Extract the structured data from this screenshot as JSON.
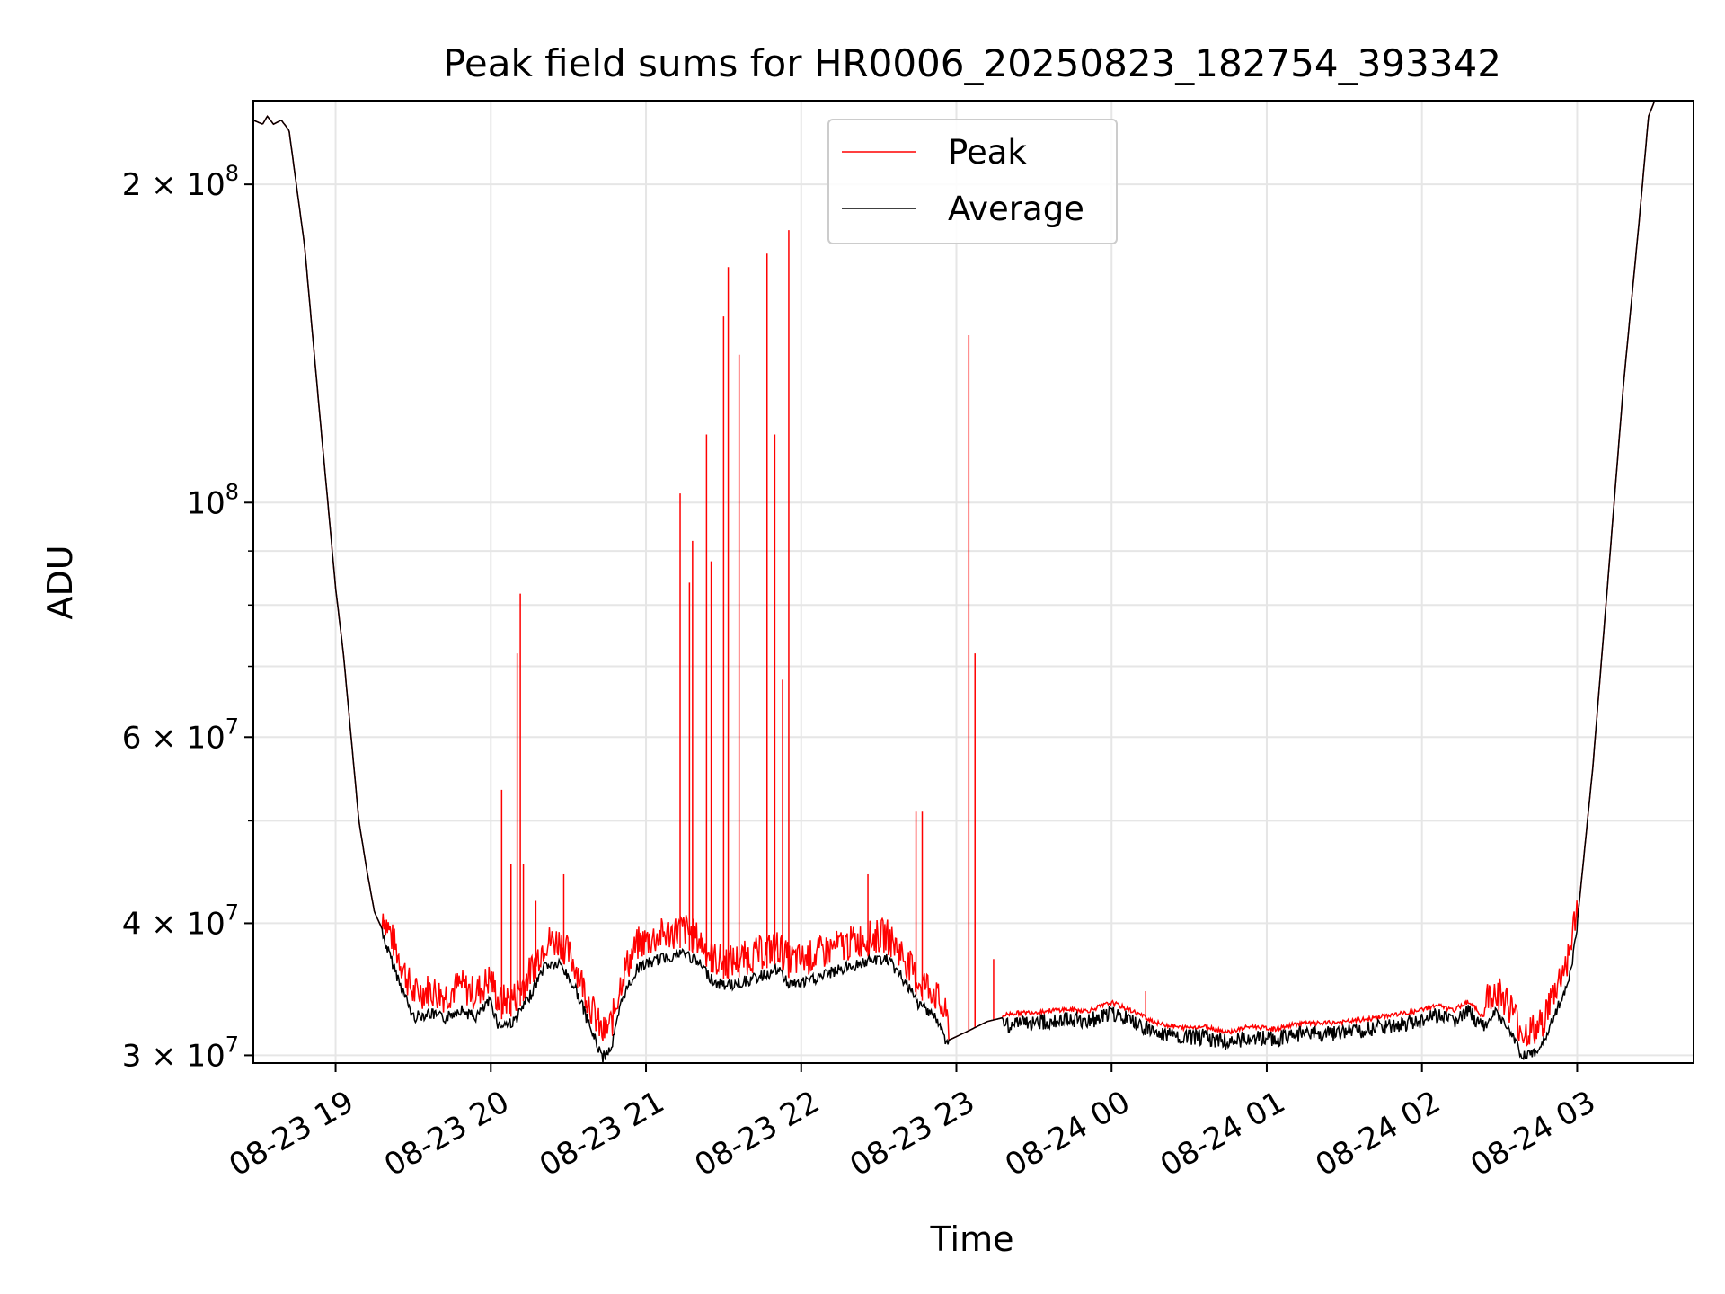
{
  "chart_data": {
    "type": "line",
    "title": "Peak field sums for HR0006_20250823_182754_393342",
    "xlabel": "Time",
    "ylabel": "ADU",
    "yscale": "log",
    "ylim": [
      29500000,
      240000000
    ],
    "xlim_hours": [
      18.47,
      27.75
    ],
    "grid": true,
    "legend_position": "upper center",
    "x_tick_labels": [
      "08-23 19",
      "08-23 20",
      "08-23 21",
      "08-23 22",
      "08-23 23",
      "08-24 00",
      "08-24 01",
      "08-24 02",
      "08-24 03"
    ],
    "x_tick_hours": [
      19,
      20,
      21,
      22,
      23,
      24,
      25,
      26,
      27
    ],
    "y_major_ticks": [
      {
        "value": 30000000,
        "mantissa": "3",
        "exp": "7"
      },
      {
        "value": 40000000,
        "mantissa": "4",
        "exp": "7"
      },
      {
        "value": 60000000,
        "mantissa": "6",
        "exp": "7"
      },
      {
        "value": 100000000,
        "mantissa": "",
        "exp": "8"
      },
      {
        "value": 200000000,
        "mantissa": "2",
        "exp": "8"
      }
    ],
    "y_minor_ticks": [
      50000000,
      70000000,
      80000000,
      90000000
    ],
    "colors": {
      "peak": "#ff0000",
      "average": "#000000"
    },
    "series": [
      {
        "name": "Average",
        "color": "#000000",
        "points": [
          [
            18.47,
            230000000
          ],
          [
            18.53,
            228000000
          ],
          [
            18.56,
            232000000
          ],
          [
            18.6,
            228000000
          ],
          [
            18.65,
            230000000
          ],
          [
            18.7,
            225000000
          ],
          [
            18.8,
            175000000
          ],
          [
            18.9,
            120000000
          ],
          [
            18.95,
            100000000
          ],
          [
            19.0,
            83000000
          ],
          [
            19.05,
            72000000
          ],
          [
            19.1,
            60000000
          ],
          [
            19.15,
            50000000
          ],
          [
            19.2,
            45000000
          ],
          [
            19.25,
            41000000
          ],
          [
            19.3,
            39500000
          ],
          [
            19.4,
            36000000
          ],
          [
            19.5,
            33000000
          ],
          [
            19.6,
            33300000
          ],
          [
            19.7,
            32900000
          ],
          [
            19.8,
            33600000
          ],
          [
            19.9,
            33000000
          ],
          [
            20.0,
            34200000
          ],
          [
            20.05,
            32400000
          ],
          [
            20.15,
            32700000
          ],
          [
            20.25,
            34500000
          ],
          [
            20.35,
            37000000
          ],
          [
            20.45,
            37000000
          ],
          [
            20.55,
            35000000
          ],
          [
            20.65,
            32000000
          ],
          [
            20.72,
            30200000
          ],
          [
            20.78,
            31000000
          ],
          [
            20.85,
            34500000
          ],
          [
            20.95,
            36800000
          ],
          [
            21.1,
            37500000
          ],
          [
            21.25,
            38000000
          ],
          [
            21.35,
            37000000
          ],
          [
            21.45,
            35500000
          ],
          [
            21.55,
            35400000
          ],
          [
            21.7,
            35900000
          ],
          [
            21.85,
            36600000
          ],
          [
            21.92,
            35500000
          ],
          [
            22.0,
            35500000
          ],
          [
            22.2,
            36400000
          ],
          [
            22.4,
            37200000
          ],
          [
            22.55,
            37500000
          ],
          [
            22.65,
            36000000
          ],
          [
            22.75,
            34000000
          ],
          [
            22.85,
            33300000
          ],
          [
            22.95,
            31000000
          ],
          [
            23.05,
            31500000
          ],
          [
            23.2,
            32300000
          ],
          [
            23.35,
            32700000
          ],
          [
            23.5,
            32800000
          ],
          [
            23.7,
            33000000
          ],
          [
            23.85,
            32900000
          ],
          [
            24.0,
            33500000
          ],
          [
            24.15,
            32800000
          ],
          [
            24.3,
            32000000
          ],
          [
            24.45,
            31700000
          ],
          [
            24.6,
            31800000
          ],
          [
            24.75,
            31400000
          ],
          [
            24.9,
            31800000
          ],
          [
            25.05,
            31600000
          ],
          [
            25.2,
            32000000
          ],
          [
            25.35,
            32000000
          ],
          [
            25.5,
            32100000
          ],
          [
            25.65,
            32300000
          ],
          [
            25.8,
            32600000
          ],
          [
            25.95,
            32800000
          ],
          [
            26.1,
            33300000
          ],
          [
            26.2,
            32900000
          ],
          [
            26.3,
            33600000
          ],
          [
            26.4,
            32400000
          ],
          [
            26.47,
            33300000
          ],
          [
            26.55,
            32500000
          ],
          [
            26.65,
            30300000
          ],
          [
            26.75,
            30500000
          ],
          [
            26.85,
            33000000
          ],
          [
            26.95,
            36000000
          ],
          [
            27.0,
            40000000
          ],
          [
            27.1,
            56000000
          ],
          [
            27.2,
            85000000
          ],
          [
            27.3,
            130000000
          ],
          [
            27.4,
            185000000
          ],
          [
            27.46,
            232000000
          ],
          [
            27.5,
            240000000
          ]
        ]
      },
      {
        "name": "Peak",
        "color": "#ff0000",
        "spikes": [
          [
            20.07,
            53500000
          ],
          [
            20.13,
            45500000
          ],
          [
            20.17,
            72000000
          ],
          [
            20.19,
            82000000
          ],
          [
            20.21,
            45500000
          ],
          [
            20.29,
            42000000
          ],
          [
            20.47,
            44500000
          ],
          [
            21.22,
            102000000
          ],
          [
            21.28,
            84000000
          ],
          [
            21.3,
            92000000
          ],
          [
            21.39,
            116000000
          ],
          [
            21.42,
            88000000
          ],
          [
            21.5,
            150000000
          ],
          [
            21.53,
            167000000
          ],
          [
            21.6,
            138000000
          ],
          [
            21.78,
            172000000
          ],
          [
            21.83,
            116000000
          ],
          [
            21.88,
            68000000
          ],
          [
            21.92,
            181000000
          ],
          [
            22.43,
            44500000
          ],
          [
            22.74,
            51000000
          ],
          [
            22.78,
            51000000
          ],
          [
            23.08,
            144000000
          ],
          [
            23.12,
            72000000
          ],
          [
            23.24,
            37000000
          ],
          [
            24.22,
            34500000
          ]
        ]
      }
    ]
  }
}
